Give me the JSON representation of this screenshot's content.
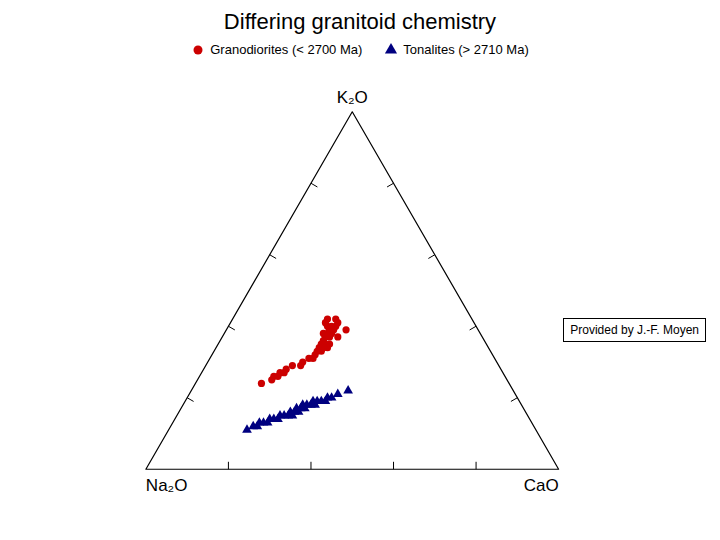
{
  "chart_data": {
    "type": "ternary",
    "title": "Differing granitoid chemistry",
    "corner_labels": [
      "Na₂O",
      "K₂O",
      "CaO"
    ],
    "ticks": [
      0.2,
      0.4,
      0.6,
      0.8
    ],
    "tick_labels": false,
    "legend": "upper right",
    "annotations": [
      "Provided by J.-F. Moyen"
    ],
    "series": [
      {
        "name": "Granodiorites (< 2700 Ma)",
        "color": "#cc0000",
        "marker": "circle",
        "values": [
          [
            0.33,
            0.42,
            0.25
          ],
          [
            0.35,
            0.42,
            0.23
          ],
          [
            0.36,
            0.41,
            0.23
          ],
          [
            0.33,
            0.41,
            0.26
          ],
          [
            0.34,
            0.4,
            0.26
          ],
          [
            0.35,
            0.4,
            0.25
          ],
          [
            0.36,
            0.4,
            0.24
          ],
          [
            0.32,
            0.39,
            0.29
          ],
          [
            0.35,
            0.39,
            0.26
          ],
          [
            0.36,
            0.39,
            0.25
          ],
          [
            0.36,
            0.38,
            0.26
          ],
          [
            0.37,
            0.38,
            0.25
          ],
          [
            0.38,
            0.38,
            0.24
          ],
          [
            0.35,
            0.37,
            0.28
          ],
          [
            0.37,
            0.37,
            0.26
          ],
          [
            0.38,
            0.37,
            0.25
          ],
          [
            0.39,
            0.36,
            0.25
          ],
          [
            0.38,
            0.35,
            0.27
          ],
          [
            0.39,
            0.35,
            0.26
          ],
          [
            0.4,
            0.35,
            0.25
          ],
          [
            0.39,
            0.34,
            0.27
          ],
          [
            0.4,
            0.34,
            0.26
          ],
          [
            0.41,
            0.34,
            0.25
          ],
          [
            0.41,
            0.33,
            0.26
          ],
          [
            0.42,
            0.33,
            0.25
          ],
          [
            0.43,
            0.32,
            0.25
          ],
          [
            0.44,
            0.31,
            0.25
          ],
          [
            0.45,
            0.31,
            0.24
          ],
          [
            0.47,
            0.3,
            0.23
          ],
          [
            0.48,
            0.29,
            0.23
          ],
          [
            0.5,
            0.29,
            0.21
          ],
          [
            0.52,
            0.28,
            0.2
          ],
          [
            0.53,
            0.27,
            0.2
          ],
          [
            0.54,
            0.27,
            0.19
          ],
          [
            0.55,
            0.26,
            0.19
          ],
          [
            0.56,
            0.26,
            0.18
          ],
          [
            0.57,
            0.25,
            0.18
          ],
          [
            0.6,
            0.24,
            0.16
          ]
        ]
      },
      {
        "name": "Tonalites (> 2710 Ma)",
        "color": "#000080",
        "marker": "triangle",
        "values": [
          [
            0.4,
            0.22,
            0.38
          ],
          [
            0.43,
            0.21,
            0.36
          ],
          [
            0.45,
            0.2,
            0.35
          ],
          [
            0.46,
            0.2,
            0.34
          ],
          [
            0.47,
            0.19,
            0.34
          ],
          [
            0.48,
            0.19,
            0.33
          ],
          [
            0.49,
            0.19,
            0.32
          ],
          [
            0.5,
            0.19,
            0.31
          ],
          [
            0.5,
            0.18,
            0.32
          ],
          [
            0.51,
            0.18,
            0.31
          ],
          [
            0.52,
            0.18,
            0.3
          ],
          [
            0.53,
            0.18,
            0.29
          ],
          [
            0.53,
            0.17,
            0.3
          ],
          [
            0.54,
            0.17,
            0.29
          ],
          [
            0.55,
            0.17,
            0.28
          ],
          [
            0.55,
            0.16,
            0.29
          ],
          [
            0.56,
            0.16,
            0.28
          ],
          [
            0.57,
            0.16,
            0.27
          ],
          [
            0.57,
            0.15,
            0.28
          ],
          [
            0.58,
            0.15,
            0.27
          ],
          [
            0.59,
            0.15,
            0.26
          ],
          [
            0.6,
            0.15,
            0.25
          ],
          [
            0.61,
            0.14,
            0.25
          ],
          [
            0.62,
            0.14,
            0.24
          ],
          [
            0.63,
            0.14,
            0.23
          ],
          [
            0.64,
            0.13,
            0.23
          ],
          [
            0.65,
            0.13,
            0.22
          ],
          [
            0.66,
            0.13,
            0.21
          ],
          [
            0.67,
            0.12,
            0.21
          ],
          [
            0.68,
            0.12,
            0.2
          ],
          [
            0.7,
            0.11,
            0.19
          ]
        ]
      }
    ]
  }
}
